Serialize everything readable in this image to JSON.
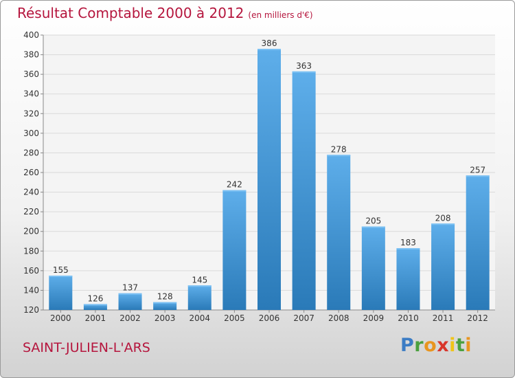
{
  "header": {
    "title": "Résultat Comptable 2000 à 2012",
    "subtitle": "(en milliers d'€)"
  },
  "footer": {
    "city": "SAINT-JULIEN-L'ARS",
    "logo_letters": [
      "P",
      "r",
      "o",
      "x",
      "i",
      "t",
      "i"
    ]
  },
  "colors": {
    "title": "#b5153d",
    "bar_light": "#5eaeea",
    "bar_dark": "#2a7ab8"
  },
  "chart_data": {
    "type": "bar",
    "title": "Résultat Comptable 2000 à 2012",
    "subtitle": "(en milliers d'€)",
    "categories": [
      "2000",
      "2001",
      "2002",
      "2003",
      "2004",
      "2005",
      "2006",
      "2007",
      "2008",
      "2009",
      "2010",
      "2011",
      "2012"
    ],
    "values": [
      155,
      126,
      137,
      128,
      145,
      242,
      386,
      363,
      278,
      205,
      183,
      208,
      257
    ],
    "ylim": [
      120,
      400
    ],
    "yticks": [
      120,
      140,
      160,
      180,
      200,
      220,
      240,
      260,
      280,
      300,
      320,
      340,
      360,
      380,
      400
    ],
    "xlabel": "",
    "ylabel": "",
    "grid": true
  }
}
